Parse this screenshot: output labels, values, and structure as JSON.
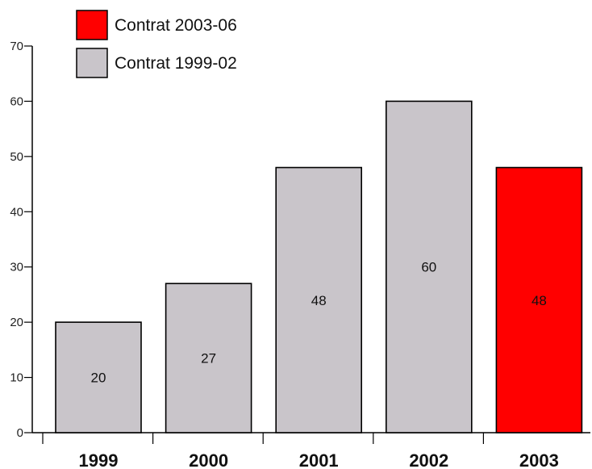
{
  "chart_data": {
    "type": "bar",
    "categories": [
      "1999",
      "2000",
      "2001",
      "2002",
      "2003"
    ],
    "values": [
      20,
      27,
      48,
      60,
      48
    ],
    "data_labels": [
      "20",
      "27",
      "48",
      "60",
      "48"
    ],
    "bar_series": [
      "Contrat 1999-02",
      "Contrat 1999-02",
      "Contrat 1999-02",
      "Contrat 1999-02",
      "Contrat 2003-06"
    ],
    "series": [
      {
        "name": "Contrat 2003-06",
        "color": "#ff0000"
      },
      {
        "name": "Contrat 1999-02",
        "color": "#c9c5ca"
      }
    ],
    "legend": [
      {
        "name": "Contrat 2003-06",
        "color": "#ff0000"
      },
      {
        "name": "Contrat 1999-02",
        "color": "#c9c5ca"
      }
    ],
    "legend_position": "top-left",
    "title": "",
    "xlabel": "",
    "ylabel": "",
    "ylim": [
      0,
      70
    ],
    "yticks": [
      0,
      10,
      20,
      30,
      40,
      50,
      60,
      70
    ],
    "ytick_labels": [
      "0",
      "10",
      "20",
      "30",
      "40",
      "50",
      "60",
      "70"
    ],
    "grid": false
  }
}
